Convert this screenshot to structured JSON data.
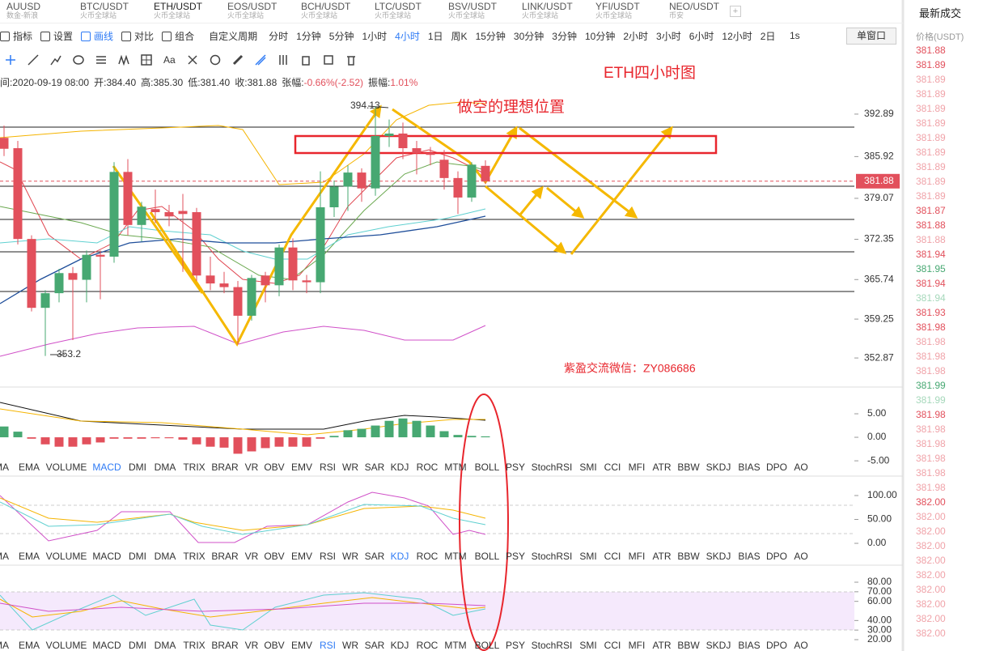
{
  "tabs": [
    {
      "symbol": "AUUSD",
      "exchange": "数金-新浪"
    },
    {
      "symbol": "BTC/USDT",
      "exchange": "火币全球站"
    },
    {
      "symbol": "ETH/USDT",
      "exchange": "火币全球站"
    },
    {
      "symbol": "EOS/USDT",
      "exchange": "火币全球站"
    },
    {
      "symbol": "BCH/USDT",
      "exchange": "火币全球站"
    },
    {
      "symbol": "LTC/USDT",
      "exchange": "火币全球站"
    },
    {
      "symbol": "BSV/USDT",
      "exchange": "火币全球站"
    },
    {
      "symbol": "LINK/USDT",
      "exchange": "火币全球站"
    },
    {
      "symbol": "YFI/USDT",
      "exchange": "火币全球站"
    },
    {
      "symbol": "NEO/USDT",
      "exchange": "币安"
    }
  ],
  "active_tab": 2,
  "toolbar": {
    "tools": [
      "指标",
      "设置",
      "画线",
      "对比",
      "组合"
    ],
    "active_tool": 2,
    "period_menu": "自定义周期",
    "periods": [
      "分时",
      "1分钟",
      "5分钟",
      "1小时",
      "4小时",
      "1日",
      "周K",
      "15分钟",
      "30分钟",
      "3分钟",
      "10分钟",
      "2小时",
      "3小时",
      "6小时",
      "12小时",
      "2日"
    ],
    "active_period": 4,
    "speed": "1s",
    "window": "单窗口",
    "font_tool": "Aa"
  },
  "info": [
    {
      "label": "间:",
      "value": "2020-09-19 08:00"
    },
    {
      "label": "开:",
      "value": "384.40"
    },
    {
      "label": "高:",
      "value": "385.30"
    },
    {
      "label": "低:",
      "value": "381.40"
    },
    {
      "label": "收:",
      "value": "381.88"
    },
    {
      "label": "张幅:",
      "value": "-0.66%(-2.52)"
    },
    {
      "label": "振幅:",
      "value": "1.01%"
    }
  ],
  "chart_data": {
    "type": "candlestick",
    "up_color": "#47a872",
    "down_color": "#e2505c",
    "candles": [
      [
        389.0,
        391.0,
        386.0,
        387.2
      ],
      [
        387.3,
        388.5,
        371.5,
        372.4
      ],
      [
        372.4,
        373.0,
        360.5,
        361.1
      ],
      [
        361.1,
        364.0,
        353.2,
        363.5
      ],
      [
        363.5,
        367.5,
        362.0,
        366.8
      ],
      [
        366.8,
        367.8,
        355.8,
        365.7
      ],
      [
        365.7,
        370.5,
        362.0,
        369.8
      ],
      [
        369.8,
        370.5,
        362.5,
        369.5
      ],
      [
        369.5,
        385.0,
        368.5,
        383.4
      ],
      [
        383.4,
        385.5,
        373.0,
        374.7
      ],
      [
        374.7,
        378.5,
        372.0,
        377.7
      ],
      [
        377.3,
        380.5,
        375.0,
        376.8
      ],
      [
        376.8,
        378.0,
        374.5,
        376.1
      ],
      [
        377.0,
        379.8,
        367.0,
        376.5
      ],
      [
        376.8,
        377.5,
        365.5,
        366.4
      ],
      [
        366.4,
        369.5,
        364.0,
        365.1
      ],
      [
        365.1,
        367.0,
        363.5,
        364.5
      ],
      [
        364.5,
        365.5,
        355.1,
        359.8
      ],
      [
        359.8,
        366.5,
        359.0,
        366.0
      ],
      [
        366.4,
        367.0,
        362.0,
        364.8
      ],
      [
        364.8,
        371.5,
        363.0,
        371.0
      ],
      [
        371.0,
        372.5,
        364.0,
        365.6
      ],
      [
        365.6,
        366.5,
        363.5,
        365.3
      ],
      [
        365.3,
        383.5,
        363.5,
        377.6
      ],
      [
        377.6,
        382.0,
        376.0,
        381.0
      ],
      [
        381.0,
        384.5,
        377.0,
        383.3
      ],
      [
        383.3,
        384.0,
        378.5,
        380.7
      ],
      [
        380.7,
        394.13,
        379.5,
        389.3
      ],
      [
        389.3,
        392.0,
        387.5,
        389.7
      ],
      [
        389.7,
        391.5,
        385.5,
        387.3
      ],
      [
        387.3,
        388.5,
        383.0,
        386.5
      ],
      [
        386.5,
        387.5,
        384.5,
        386.2
      ],
      [
        385.4,
        387.0,
        380.5,
        382.4
      ],
      [
        382.4,
        383.5,
        376.5,
        379.2
      ],
      [
        379.2,
        385.0,
        378.5,
        384.6
      ],
      [
        384.4,
        385.3,
        381.4,
        381.88
      ]
    ],
    "ylim": [
      348.1,
      397.0
    ],
    "yticks": [
      392.89,
      385.92,
      379.07,
      372.35,
      365.74,
      359.25,
      352.87
    ],
    "last": 381.88,
    "high_mark": 394.13,
    "low_mark": 353.2,
    "title_note": "ETH四小时图",
    "target_note": "做空的理想位置",
    "contact": "紫盈交流微信：ZY086686"
  },
  "indicators": [
    "MA",
    "EMA",
    "VOLUME",
    "MACD",
    "DMI",
    "DMA",
    "TRIX",
    "BRAR",
    "VR",
    "OBV",
    "EMV",
    "RSI",
    "WR",
    "SAR",
    "KDJ",
    "ROC",
    "MTM",
    "BOLL",
    "PSY",
    "StochRSI",
    "SMI",
    "CCI",
    "MFI",
    "ATR",
    "BBW",
    "SKDJ",
    "BIAS",
    "DPO",
    "AO"
  ],
  "macd": {
    "active": 3,
    "ylim": [
      -5.5,
      10
    ],
    "yticks": [
      {
        "value": 5,
        "label": "5.00"
      },
      {
        "value": 0,
        "label": "0.00"
      },
      {
        "value": -5,
        "label": "-5.00"
      }
    ],
    "values": [
      2.3,
      1.2,
      -0.3,
      -1.5,
      -2,
      -2,
      -1.5,
      -1.1,
      -0.3,
      -0.3,
      -0.3,
      -0.2,
      -0.2,
      -0.5,
      -1.5,
      -2,
      -2.2,
      -3.5,
      -3,
      -2.3,
      -2,
      -2,
      -2,
      -0.3,
      0.3,
      1.5,
      1.8,
      2.5,
      3.5,
      4,
      3.5,
      2.5,
      1.3,
      0.5,
      0.3,
      0.2
    ]
  },
  "kdj": {
    "active": 14,
    "ylim": [
      -18.6,
      133.9
    ],
    "yticks": [
      {
        "value": 100,
        "label": "100.00"
      },
      {
        "value": 50,
        "label": "50.00"
      },
      {
        "value": 0,
        "label": "0.00"
      }
    ]
  },
  "rsi": {
    "active": 11,
    "ylim": [
      16.6,
      94.4
    ],
    "yticks": [
      {
        "value": 80,
        "label": "80.00"
      },
      {
        "value": 70,
        "label": "70.00"
      },
      {
        "value": 60,
        "label": "60.00"
      },
      {
        "value": 40,
        "label": "40.00"
      },
      {
        "value": 30,
        "label": "30.00"
      },
      {
        "value": 20,
        "label": "20.00"
      }
    ]
  },
  "trades": {
    "title": "最新成交",
    "header": "价格(USDT)",
    "rows": [
      [
        "381.88",
        "#e2505c"
      ],
      [
        "381.89",
        "#e2505c"
      ],
      [
        "381.89",
        "#f0a3a9"
      ],
      [
        "381.89",
        "#f0a3a9"
      ],
      [
        "381.89",
        "#f0a3a9"
      ],
      [
        "381.89",
        "#f0a3a9"
      ],
      [
        "381.89",
        "#f0a3a9"
      ],
      [
        "381.89",
        "#f0a3a9"
      ],
      [
        "381.89",
        "#f0a3a9"
      ],
      [
        "381.89",
        "#f0a3a9"
      ],
      [
        "381.89",
        "#f0a3a9"
      ],
      [
        "381.87",
        "#e2505c"
      ],
      [
        "381.88",
        "#e2505c"
      ],
      [
        "381.88",
        "#f0a3a9"
      ],
      [
        "381.94",
        "#e2505c"
      ],
      [
        "381.95",
        "#47a872"
      ],
      [
        "381.94",
        "#e2505c"
      ],
      [
        "381.94",
        "#a6d8bb"
      ],
      [
        "381.93",
        "#e2505c"
      ],
      [
        "381.98",
        "#e2505c"
      ],
      [
        "381.98",
        "#f0a3a9"
      ],
      [
        "381.98",
        "#f0a3a9"
      ],
      [
        "381.98",
        "#f0a3a9"
      ],
      [
        "381.99",
        "#47a872"
      ],
      [
        "381.99",
        "#a6d8bb"
      ],
      [
        "381.98",
        "#e2505c"
      ],
      [
        "381.98",
        "#f0a3a9"
      ],
      [
        "381.98",
        "#f0a3a9"
      ],
      [
        "381.98",
        "#f0a3a9"
      ],
      [
        "381.98",
        "#f0a3a9"
      ],
      [
        "381.98",
        "#f0a3a9"
      ],
      [
        "382.00",
        "#e2505c"
      ],
      [
        "382.00",
        "#f0a3a9"
      ],
      [
        "382.00",
        "#f0a3a9"
      ],
      [
        "382.00",
        "#f0a3a9"
      ],
      [
        "382.00",
        "#f0a3a9"
      ],
      [
        "382.00",
        "#f0a3a9"
      ],
      [
        "382.00",
        "#f0a3a9"
      ],
      [
        "382.00",
        "#f0a3a9"
      ],
      [
        "382.00",
        "#f0a3a9"
      ],
      [
        "382.00",
        "#f0a3a9"
      ]
    ]
  }
}
